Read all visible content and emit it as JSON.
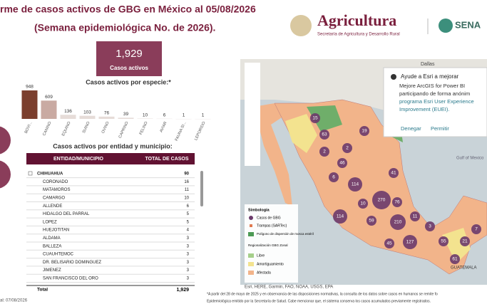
{
  "header": {
    "title": "rme de casos activos de GBG en México al 05/08/2026",
    "subtitle": "(Semana epidemiológica No. de 2026).",
    "brand": "Agricultura",
    "brand_sub": "Secretaría de Agricultura y Desarrollo Rural",
    "partner": "SENA"
  },
  "kpi": {
    "value": "1,929",
    "label": "Casos activos"
  },
  "chart_data": {
    "type": "bar",
    "title": "Casos activos por especie:*",
    "categories": [
      "BOVI...",
      "CANINO",
      "EQUINO",
      "SUINO",
      "OVINO",
      "CAPRINO",
      "FELINO",
      "AVIAR",
      "FAUNA SI...",
      "LEPORIDO"
    ],
    "values": [
      948,
      609,
      136,
      103,
      76,
      39,
      10,
      6,
      1,
      1
    ],
    "colors": [
      "#7b3f2e",
      "#c9aaa2",
      "#e6dcd8",
      "#e6dcd8",
      "#e6dcd8",
      "#e6dcd8",
      "#e6dcd8",
      "#e6dcd8",
      "#e6dcd8",
      "#e6dcd8"
    ]
  },
  "table": {
    "title": "Casos activos por entidad y municipio:",
    "headers": [
      "ENTIDAD/MUNICIPIO",
      "TOTAL DE CASOS"
    ],
    "rows": [
      [
        "CHIHUAHUA",
        "90"
      ],
      [
        "CORONADO",
        "16"
      ],
      [
        "MATAMOROS",
        "11"
      ],
      [
        "CAMARGO",
        "10"
      ],
      [
        "ALLENDE",
        "6"
      ],
      [
        "HIDALGO DEL PARRAL",
        "5"
      ],
      [
        "LOPEZ",
        "5"
      ],
      [
        "HUEJOTITAN",
        "4"
      ],
      [
        "ALDAMA",
        "3"
      ],
      [
        "BALLEZA",
        "3"
      ],
      [
        "CUAUHTEMOC",
        "3"
      ],
      [
        "DR. BELISARIO DOMINGUEZ",
        "3"
      ],
      [
        "JIMENEZ",
        "3"
      ],
      [
        "SAN FRANCISCO DEL ORO",
        "3"
      ]
    ],
    "total": [
      "Total",
      "1,929"
    ]
  },
  "map": {
    "legend": {
      "title": "Simbología",
      "items": [
        "Casos de GBG",
        "Trampas (SARTec)",
        "Polígono de dispersión de mosca estéril"
      ],
      "zone_title": "Regionalización GBG Zonal",
      "zones": [
        "Libre",
        "Amortiguamiento",
        "Afectada"
      ]
    },
    "labels": [
      "Dallas",
      "Gulf of Mexico",
      "GUATEMALA"
    ],
    "bubbles": [
      "15",
      "63",
      "19",
      "2",
      "2",
      "46",
      "41",
      "270",
      "114",
      "6",
      "114",
      "59",
      "210",
      "127",
      "55",
      "61",
      "45",
      "21",
      "11",
      "7",
      "3",
      "76",
      "10"
    ],
    "attribution": "Esri, HERE, Garmin, FAO, NOAA, USGS, EPA",
    "popup": {
      "title": "Ayude a Esri a mejorar",
      "body": "Mejore ArcGIS for Power BI participando de forma anónim",
      "link": "programa Esri User Experience Improvement (EUEI).",
      "deny": "Denegar",
      "allow": "Permitir"
    }
  },
  "footer": {
    "date": "al: 07/08/2026",
    "note": "*A partir del 28 de mayo de 2025 y en observancia de las disposiciones normativas, la consulta de los datos sobre casos en humanos se remite fo",
    "note2": "Epidemiológica emitido por la Secretaría de Salud. Cabe mencionar que, el sistema conserva los casos acumulados previamente registrados."
  }
}
